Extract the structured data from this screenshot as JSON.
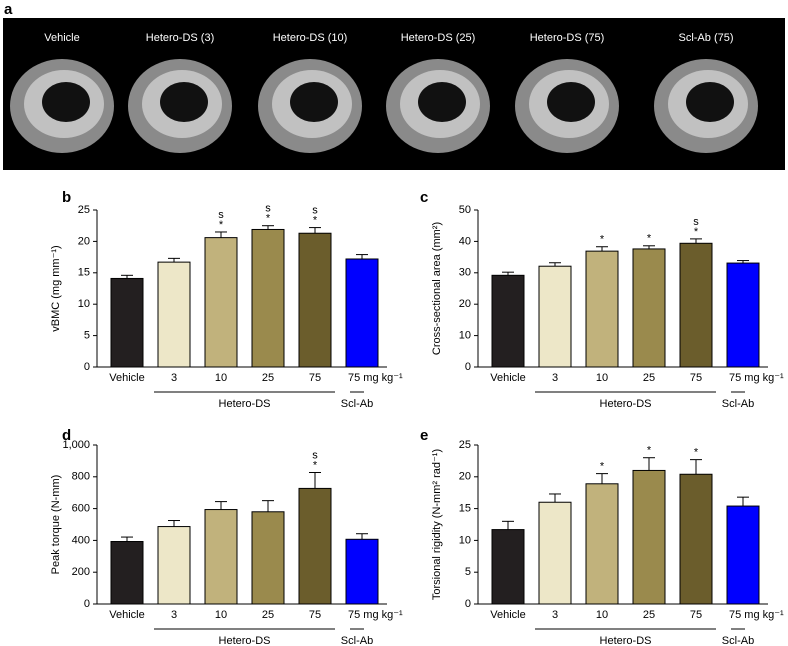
{
  "panel_a": {
    "label": "a",
    "image_labels": [
      "Vehicle",
      "Hetero-DS (3)",
      "Hetero-DS (10)",
      "Hetero-DS (25)",
      "Hetero-DS (75)",
      "Scl-Ab (75)"
    ]
  },
  "chart_data": [
    {
      "type": "bar",
      "panel": "b",
      "ylabel": "vBMC (mg mm⁻¹)",
      "categories": [
        "Vehicle",
        "3",
        "10",
        "25",
        "75",
        "75 mg kg⁻¹"
      ],
      "group_labels": [
        "Hetero-DS",
        "Scl-Ab"
      ],
      "values": [
        14.1,
        16.7,
        20.6,
        21.9,
        21.3,
        17.2
      ],
      "errors": [
        0.5,
        0.6,
        0.9,
        0.6,
        0.9,
        0.7
      ],
      "colors": [
        "#231f20",
        "#ede7c8",
        "#c1b27c",
        "#9a8a4d",
        "#6b5d2c",
        "#0000ff"
      ],
      "annotations": [
        [],
        [],
        [
          "s",
          "*"
        ],
        [
          "s",
          "*"
        ],
        [
          "s",
          "*"
        ],
        []
      ],
      "ylim": [
        0,
        25
      ],
      "yticks": [
        0,
        5,
        10,
        15,
        20,
        25
      ]
    },
    {
      "type": "bar",
      "panel": "c",
      "ylabel": "Cross-sectional area (mm²)",
      "categories": [
        "Vehicle",
        "3",
        "10",
        "25",
        "75",
        "75 mg kg⁻¹"
      ],
      "group_labels": [
        "Hetero-DS",
        "Scl-Ab"
      ],
      "values": [
        29.2,
        32.1,
        36.9,
        37.6,
        39.4,
        33.1
      ],
      "errors": [
        1.0,
        1.1,
        1.4,
        1.0,
        1.4,
        0.8
      ],
      "colors": [
        "#231f20",
        "#ede7c8",
        "#c1b27c",
        "#9a8a4d",
        "#6b5d2c",
        "#0000ff"
      ],
      "annotations": [
        [],
        [],
        [
          "*"
        ],
        [
          "*"
        ],
        [
          "s",
          "*"
        ],
        []
      ],
      "ylim": [
        0,
        50
      ],
      "yticks": [
        0,
        10,
        20,
        30,
        40,
        50
      ]
    },
    {
      "type": "bar",
      "panel": "d",
      "ylabel": "Peak  torque (N-mm)",
      "categories": [
        "Vehicle",
        "3",
        "10",
        "25",
        "75",
        "75 mg kg⁻¹"
      ],
      "group_labels": [
        "Hetero-DS",
        "Scl-Ab"
      ],
      "values": [
        393,
        487,
        594,
        580,
        727,
        407
      ],
      "errors": [
        28,
        38,
        50,
        70,
        100,
        35
      ],
      "colors": [
        "#231f20",
        "#ede7c8",
        "#c1b27c",
        "#9a8a4d",
        "#6b5d2c",
        "#0000ff"
      ],
      "annotations": [
        [],
        [],
        [],
        [],
        [
          "s",
          "*"
        ],
        []
      ],
      "ylim": [
        0,
        1000
      ],
      "yticks": [
        0,
        200,
        400,
        600,
        800,
        {
          "value": 1000,
          "label": "1,000"
        }
      ]
    },
    {
      "type": "bar",
      "panel": "e",
      "ylabel": "Torsional rigidity (N-mm² rad⁻¹)",
      "categories": [
        "Vehicle",
        "3",
        "10",
        "25",
        "75",
        "75 mg kg⁻¹"
      ],
      "group_labels": [
        "Hetero-DS",
        "Scl-Ab"
      ],
      "values": [
        11.7,
        16.0,
        18.9,
        21.0,
        20.4,
        15.4
      ],
      "errors": [
        1.3,
        1.3,
        1.6,
        2.0,
        2.3,
        1.4
      ],
      "colors": [
        "#231f20",
        "#ede7c8",
        "#c1b27c",
        "#9a8a4d",
        "#6b5d2c",
        "#0000ff"
      ],
      "annotations": [
        [],
        [],
        [
          "*"
        ],
        [
          "*"
        ],
        [
          "*"
        ],
        []
      ],
      "ylim": [
        0,
        25
      ],
      "yticks": [
        0,
        5,
        10,
        15,
        20,
        25
      ]
    }
  ]
}
